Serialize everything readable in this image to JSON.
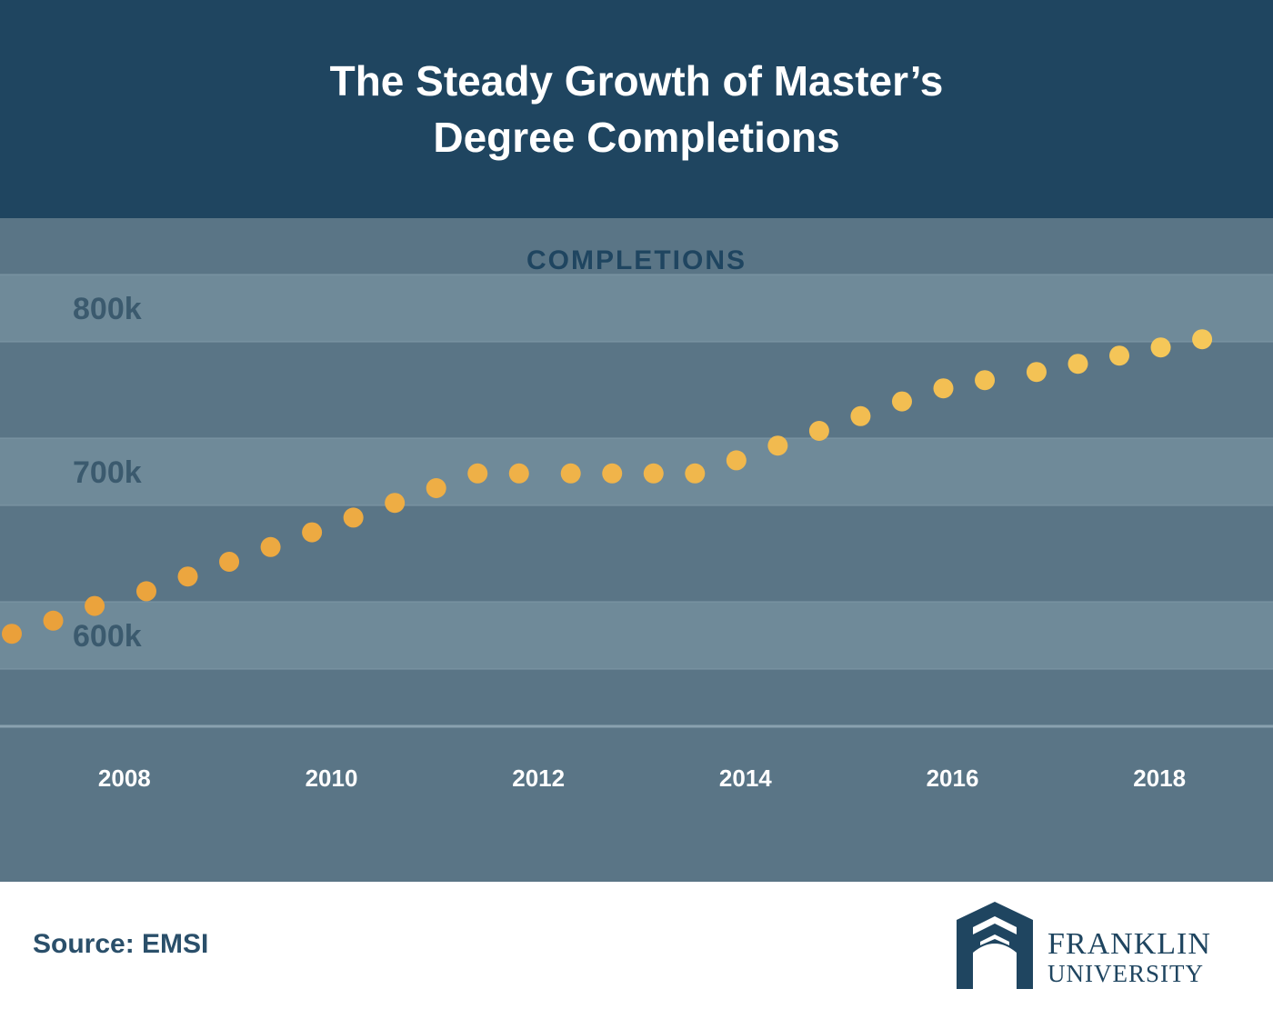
{
  "header": {
    "title": "The Steady Growth of Master’s Degree Completions"
  },
  "colors": {
    "header_bg": "#1f4560",
    "plot_bg": "#5a7586",
    "band": "#6f8a99",
    "tick_text": "#3b5a6e",
    "dot_start": "#eaa03a",
    "dot_end": "#f5c85a"
  },
  "chart_data": {
    "type": "scatter",
    "title": "COMPLETIONS",
    "xlabel": "",
    "ylabel": "",
    "y_ticks": [
      {
        "value": 600000,
        "label": "600k"
      },
      {
        "value": 700000,
        "label": "700k"
      },
      {
        "value": 800000,
        "label": "800k"
      }
    ],
    "x_ticks": [
      {
        "value": 2008,
        "label": "2008"
      },
      {
        "value": 2010,
        "label": "2010"
      },
      {
        "value": 2012,
        "label": "2012"
      },
      {
        "value": 2014,
        "label": "2014"
      },
      {
        "value": 2016,
        "label": "2016"
      },
      {
        "value": 2018,
        "label": "2018"
      }
    ],
    "xlim": [
      2007,
      2019
    ],
    "ylim": [
      545000,
      855000
    ],
    "grid": "horizontal bands",
    "points": [
      {
        "x": 2007.0,
        "y": 601000
      },
      {
        "x": 2007.4,
        "y": 609000
      },
      {
        "x": 2007.8,
        "y": 618000
      },
      {
        "x": 2008.3,
        "y": 627000
      },
      {
        "x": 2008.7,
        "y": 636000
      },
      {
        "x": 2009.1,
        "y": 645000
      },
      {
        "x": 2009.5,
        "y": 654000
      },
      {
        "x": 2009.9,
        "y": 663000
      },
      {
        "x": 2010.3,
        "y": 672000
      },
      {
        "x": 2010.7,
        "y": 681000
      },
      {
        "x": 2011.1,
        "y": 690000
      },
      {
        "x": 2011.5,
        "y": 699000
      },
      {
        "x": 2011.9,
        "y": 699000
      },
      {
        "x": 2012.4,
        "y": 699000
      },
      {
        "x": 2012.8,
        "y": 699000
      },
      {
        "x": 2013.2,
        "y": 699000
      },
      {
        "x": 2013.6,
        "y": 699000
      },
      {
        "x": 2014.0,
        "y": 707000
      },
      {
        "x": 2014.4,
        "y": 716000
      },
      {
        "x": 2014.8,
        "y": 725000
      },
      {
        "x": 2015.2,
        "y": 734000
      },
      {
        "x": 2015.6,
        "y": 743000
      },
      {
        "x": 2016.0,
        "y": 751000
      },
      {
        "x": 2016.4,
        "y": 756000
      },
      {
        "x": 2016.9,
        "y": 761000
      },
      {
        "x": 2017.3,
        "y": 766000
      },
      {
        "x": 2017.7,
        "y": 771000
      },
      {
        "x": 2018.1,
        "y": 776000
      },
      {
        "x": 2018.5,
        "y": 781000
      }
    ]
  },
  "footer": {
    "source": "Source: EMSI"
  },
  "logo": {
    "line1": "FRANKLIN",
    "line2": "UNIVERSITY",
    "icon": "arch-icon"
  }
}
